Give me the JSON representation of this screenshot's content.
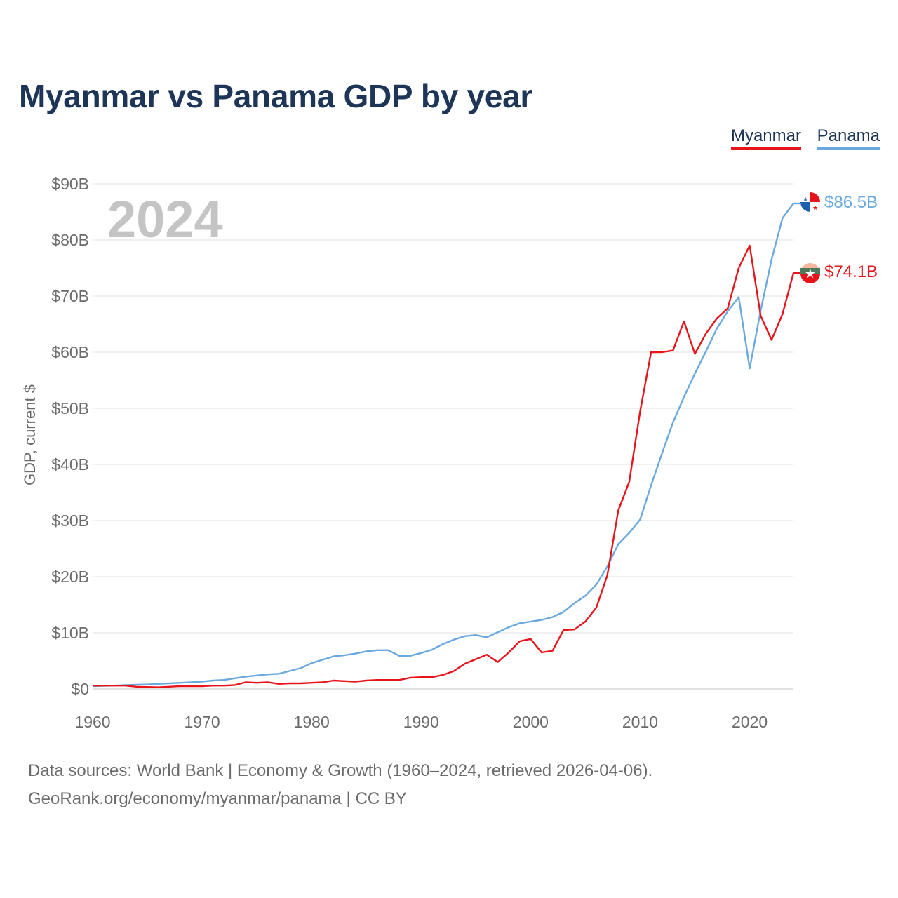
{
  "title": "Myanmar vs Panama GDP by year",
  "legend": [
    {
      "name": "Myanmar",
      "color": "#e8141b"
    },
    {
      "name": "Panama",
      "color": "#6aa9e0"
    }
  ],
  "year_label": "2024",
  "end_labels": {
    "panama": "$86.5B",
    "myanmar": "$74.1B"
  },
  "source": {
    "line1": "Data sources: World Bank | Economy & Growth (1960–2024, retrieved 2026-04-06).",
    "line2": "GeoRank.org/economy/myanmar/panama | CC BY"
  },
  "chart_data": {
    "type": "line",
    "title": "Myanmar vs Panama GDP by year",
    "xlabel": "",
    "ylabel": "GDP, current $",
    "xlim": [
      1960,
      2024
    ],
    "ylim": [
      0,
      90
    ],
    "y_unit": "billion USD",
    "x_ticks": [
      1960,
      1970,
      1980,
      1990,
      2000,
      2010,
      2020
    ],
    "x_tick_labels": [
      "1960",
      "1970",
      "1980",
      "1990",
      "2000",
      "2010",
      "2020"
    ],
    "y_ticks": [
      0,
      10,
      20,
      30,
      40,
      50,
      60,
      70,
      80,
      90
    ],
    "y_tick_labels": [
      "$0",
      "$10B",
      "$20B",
      "$30B",
      "$40B",
      "$50B",
      "$60B",
      "$70B",
      "$80B",
      "$90B"
    ],
    "grid": true,
    "x": [
      1960,
      1961,
      1962,
      1963,
      1964,
      1965,
      1966,
      1967,
      1968,
      1969,
      1970,
      1971,
      1972,
      1973,
      1974,
      1975,
      1976,
      1977,
      1978,
      1979,
      1980,
      1981,
      1982,
      1983,
      1984,
      1985,
      1986,
      1987,
      1988,
      1989,
      1990,
      1991,
      1992,
      1993,
      1994,
      1995,
      1996,
      1997,
      1998,
      1999,
      2000,
      2001,
      2002,
      2003,
      2004,
      2005,
      2006,
      2007,
      2008,
      2009,
      2010,
      2011,
      2012,
      2013,
      2014,
      2015,
      2016,
      2017,
      2018,
      2019,
      2020,
      2021,
      2022,
      2023,
      2024
    ],
    "series": [
      {
        "name": "Myanmar",
        "color": "#e8141b",
        "values": [
          0.6,
          0.6,
          0.6,
          0.6,
          0.4,
          0.35,
          0.3,
          0.4,
          0.5,
          0.5,
          0.5,
          0.6,
          0.6,
          0.7,
          1.2,
          1.1,
          1.2,
          0.9,
          1.0,
          1.0,
          1.1,
          1.2,
          1.5,
          1.4,
          1.3,
          1.5,
          1.6,
          1.6,
          1.6,
          2.0,
          2.1,
          2.1,
          2.5,
          3.2,
          4.5,
          5.3,
          6.1,
          4.8,
          6.5,
          8.5,
          8.9,
          6.5,
          6.8,
          10.5,
          10.6,
          12.0,
          14.5,
          20.2,
          31.8,
          36.9,
          49.5,
          60.0,
          60.0,
          60.3,
          65.5,
          59.7,
          63.3,
          66.0,
          67.8,
          75.0,
          79.0,
          66.5,
          62.2,
          66.8,
          74.1
        ]
      },
      {
        "name": "Panama",
        "color": "#6aa9e0",
        "values": [
          0.5,
          0.55,
          0.6,
          0.7,
          0.75,
          0.8,
          0.9,
          1.0,
          1.1,
          1.2,
          1.3,
          1.5,
          1.6,
          1.9,
          2.2,
          2.4,
          2.6,
          2.7,
          3.2,
          3.7,
          4.6,
          5.2,
          5.8,
          6.0,
          6.3,
          6.7,
          6.9,
          6.9,
          5.9,
          5.9,
          6.4,
          7.0,
          8.0,
          8.8,
          9.4,
          9.6,
          9.2,
          10.1,
          11.0,
          11.7,
          12.0,
          12.3,
          12.8,
          13.7,
          15.3,
          16.6,
          18.6,
          21.8,
          25.8,
          27.8,
          30.2,
          36.3,
          42.0,
          47.5,
          52.0,
          56.2,
          60.1,
          64.2,
          67.3,
          69.8,
          57.1,
          67.4,
          76.5,
          83.9,
          86.5
        ]
      }
    ]
  }
}
